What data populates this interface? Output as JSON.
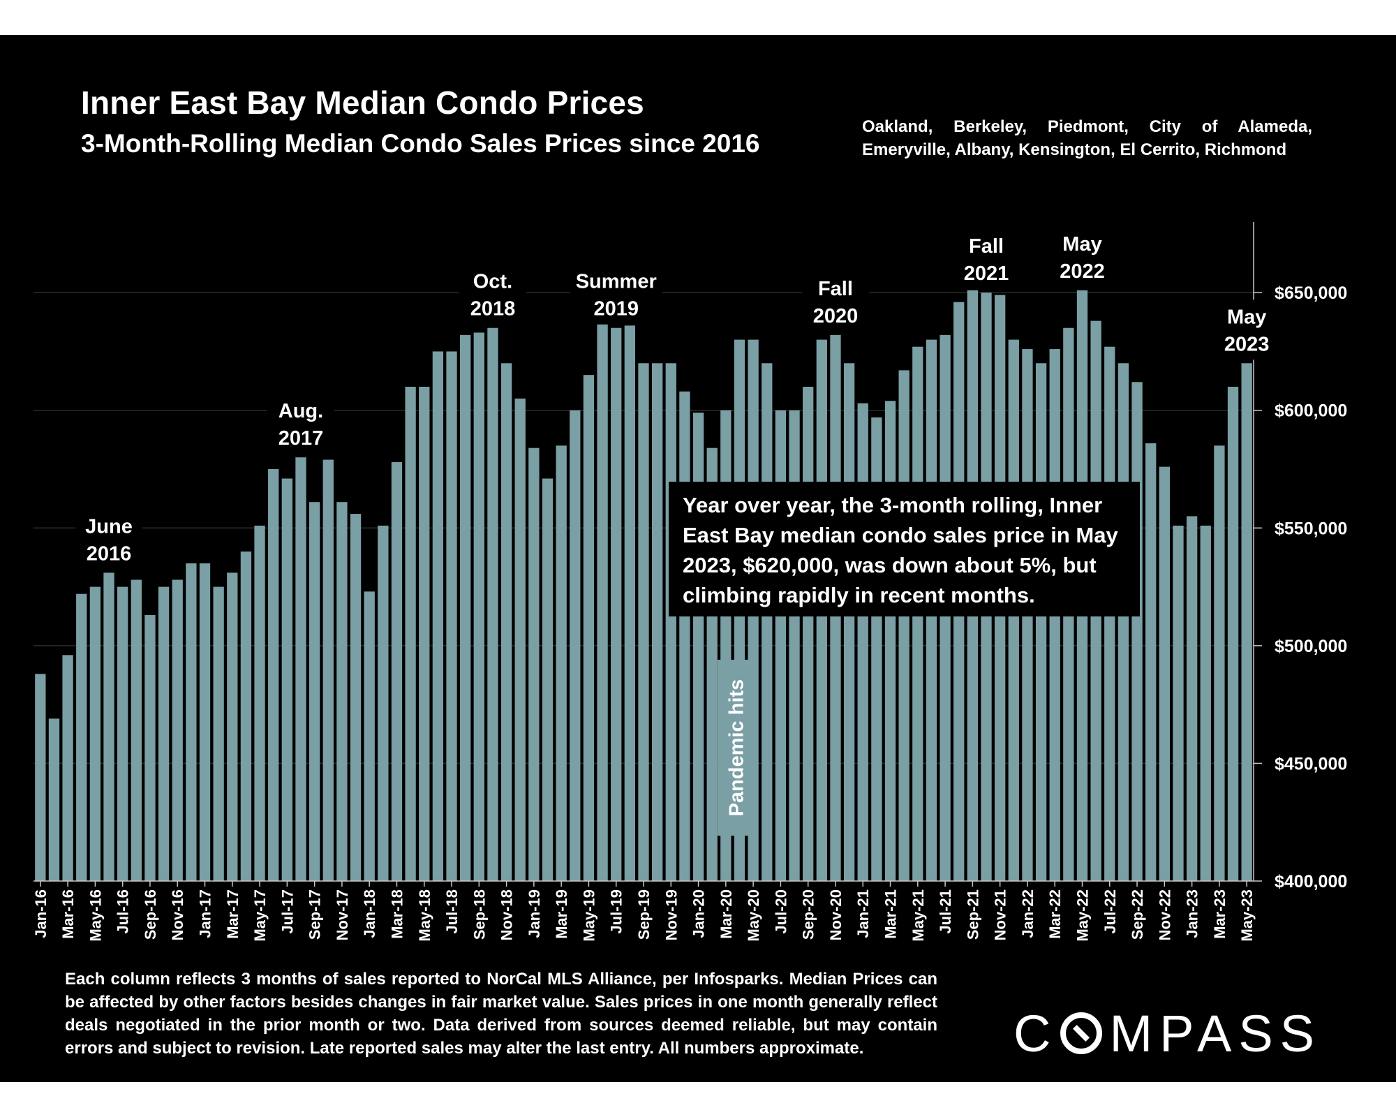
{
  "colors": {
    "background": "#000000",
    "bar": "#7a9fa5",
    "text": "#ffffff",
    "gridline": "#2b2b2b",
    "axis": "#c8c8c8"
  },
  "header": {
    "title": "Inner East Bay Median Condo Prices",
    "subtitle": "3-Month-Rolling Median Condo Sales Prices since 2016",
    "regions": "Oakland, Berkeley, Piedmont, City of Alameda, Emeryville, Albany, Kensington, El Cerrito, Richmond"
  },
  "chart_data": {
    "type": "bar",
    "title": "Inner East Bay Median Condo Prices",
    "subtitle": "3-Month-Rolling Median Condo Sales Prices since 2016",
    "xlabel": "",
    "ylabel": "",
    "ylim": [
      400000,
      680000
    ],
    "y_ticks": [
      400000,
      450000,
      500000,
      550000,
      600000,
      650000
    ],
    "y_tick_labels": [
      "$400,000",
      "$450,000",
      "$500,000",
      "$550,000",
      "$600,000",
      "$650,000"
    ],
    "y_axis_position": "right",
    "grid": true,
    "categories": [
      "Jan-16",
      "Feb-16",
      "Mar-16",
      "Apr-16",
      "May-16",
      "Jun-16",
      "Jul-16",
      "Aug-16",
      "Sep-16",
      "Oct-16",
      "Nov-16",
      "Dec-16",
      "Jan-17",
      "Feb-17",
      "Mar-17",
      "Apr-17",
      "May-17",
      "Jun-17",
      "Jul-17",
      "Aug-17",
      "Sep-17",
      "Oct-17",
      "Nov-17",
      "Dec-17",
      "Jan-18",
      "Feb-18",
      "Mar-18",
      "Apr-18",
      "May-18",
      "Jun-18",
      "Jul-18",
      "Aug-18",
      "Sep-18",
      "Oct-18",
      "Nov-18",
      "Dec-18",
      "Jan-19",
      "Feb-19",
      "Mar-19",
      "Apr-19",
      "May-19",
      "Jun-19",
      "Jul-19",
      "Aug-19",
      "Sep-19",
      "Oct-19",
      "Nov-19",
      "Dec-19",
      "Jan-20",
      "Feb-20",
      "Mar-20",
      "Apr-20",
      "May-20",
      "Jun-20",
      "Jul-20",
      "Aug-20",
      "Sep-20",
      "Oct-20",
      "Nov-20",
      "Dec-20",
      "Jan-21",
      "Feb-21",
      "Mar-21",
      "Apr-21",
      "May-21",
      "Jun-21",
      "Jul-21",
      "Aug-21",
      "Sep-21",
      "Oct-21",
      "Nov-21",
      "Dec-21",
      "Jan-22",
      "Feb-22",
      "Mar-22",
      "Apr-22",
      "May-22",
      "Jun-22",
      "Jul-22",
      "Aug-22",
      "Sep-22",
      "Oct-22",
      "Nov-22",
      "Dec-22",
      "Jan-23",
      "Feb-23",
      "Mar-23",
      "Apr-23",
      "May-23"
    ],
    "x_tick_labels": [
      "Jan-16",
      "Mar-16",
      "May-16",
      "Jul-16",
      "Sep-16",
      "Nov-16",
      "Jan-17",
      "Mar-17",
      "May-17",
      "Jul-17",
      "Sep-17",
      "Nov-17",
      "Jan-18",
      "Mar-18",
      "May-18",
      "Jul-18",
      "Sep-18",
      "Nov-18",
      "Jan-19",
      "Mar-19",
      "May-19",
      "Jul-19",
      "Sep-19",
      "Nov-19",
      "Jan-20",
      "Mar-20",
      "May-20",
      "Jul-20",
      "Sep-20",
      "Nov-20",
      "Jan-21",
      "Mar-21",
      "May-21",
      "Jul-21",
      "Sep-21",
      "Nov-21",
      "Jan-22",
      "Mar-22",
      "May-22",
      "Jul-22",
      "Sep-22",
      "Nov-22",
      "Jan-23",
      "Mar-23",
      "May-23"
    ],
    "values": [
      488000,
      469000,
      496000,
      522000,
      525000,
      531000,
      525000,
      528000,
      513000,
      525000,
      528000,
      535000,
      535000,
      525000,
      531000,
      540000,
      551000,
      575000,
      571000,
      580000,
      561000,
      579000,
      561000,
      556000,
      523000,
      551000,
      578000,
      610000,
      610000,
      625000,
      625000,
      632000,
      633000,
      635000,
      620000,
      605000,
      584000,
      571000,
      585000,
      600000,
      615000,
      637000,
      635000,
      636000,
      620000,
      620000,
      620000,
      608000,
      599000,
      584000,
      600000,
      630000,
      630000,
      620000,
      600000,
      600000,
      610000,
      630000,
      632000,
      620000,
      603000,
      597000,
      604000,
      617000,
      627000,
      630000,
      632000,
      646000,
      651000,
      650000,
      649000,
      630000,
      626000,
      620000,
      626000,
      635000,
      651000,
      638000,
      627000,
      620000,
      612000,
      586000,
      576000,
      551000,
      555000,
      551000,
      585000,
      610000,
      620000
    ],
    "annotations": [
      {
        "lines": [
          "June",
          "2016"
        ],
        "index": 5
      },
      {
        "lines": [
          "Aug.",
          "2017"
        ],
        "index": 19
      },
      {
        "lines": [
          "Oct.",
          "2018"
        ],
        "index": 33
      },
      {
        "lines": [
          "Summer",
          "2019"
        ],
        "index": 42
      },
      {
        "lines": [
          "Fall",
          "2020"
        ],
        "index": 58
      },
      {
        "lines": [
          "Fall",
          "2021"
        ],
        "index": 69
      },
      {
        "lines": [
          "May",
          "2022"
        ],
        "index": 76
      },
      {
        "lines": [
          "May",
          "2023"
        ],
        "index": 88
      }
    ],
    "pandemic_label": "Pandemic hits",
    "callout": "Year over year, the 3-month rolling, Inner East Bay median condo sales price in May 2023, $620,000, was down about 5%, but climbing rapidly in recent months."
  },
  "footnote": "Each column reflects 3 months of sales reported to NorCal MLS Alliance, per Infosparks. Median Prices can be affected by other factors besides changes in fair market value. Sales prices in one month generally reflect deals negotiated in the prior month or two. Data derived from sources deemed reliable, but may contain errors and subject to revision. Late reported sales may alter the last entry. All numbers approximate.",
  "logo": {
    "before": "C",
    "after": "MPASS"
  }
}
